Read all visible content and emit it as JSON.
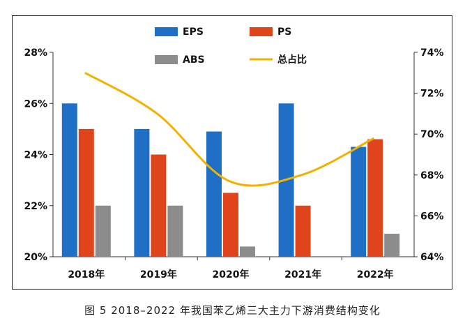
{
  "caption": "图 5  2018–2022 年我国苯乙烯三大主力下游消费结构变化",
  "chart_data": {
    "type": "bar",
    "categories": [
      "2018年",
      "2019年",
      "2020年",
      "2021年",
      "2022年"
    ],
    "series": [
      {
        "name": "EPS",
        "type": "bar",
        "axis": "left",
        "color": "#1f6fc6",
        "values": [
          26.0,
          25.0,
          24.9,
          26.0,
          24.3
        ]
      },
      {
        "name": "PS",
        "type": "bar",
        "axis": "left",
        "color": "#e0441b",
        "values": [
          25.0,
          24.0,
          22.5,
          22.0,
          24.6
        ]
      },
      {
        "name": "ABS",
        "type": "bar",
        "axis": "left",
        "color": "#8c8c8c",
        "values": [
          22.0,
          22.0,
          20.4,
          null,
          20.9
        ]
      },
      {
        "name": "总占比",
        "type": "line",
        "axis": "right",
        "color": "#f2b100",
        "values": [
          73.0,
          71.0,
          67.7,
          68.0,
          69.8
        ]
      }
    ],
    "y_left": {
      "min": 20,
      "max": 28,
      "ticks": [
        20,
        22,
        24,
        26,
        28
      ],
      "tick_labels": [
        "20%",
        "22%",
        "24%",
        "26%",
        "28%"
      ]
    },
    "y_right": {
      "min": 64,
      "max": 74,
      "ticks": [
        64,
        66,
        68,
        70,
        72,
        74
      ],
      "tick_labels": [
        "64%",
        "66%",
        "68%",
        "70%",
        "72%",
        "74%"
      ]
    },
    "legend_placement": "top-center",
    "grid": false
  }
}
